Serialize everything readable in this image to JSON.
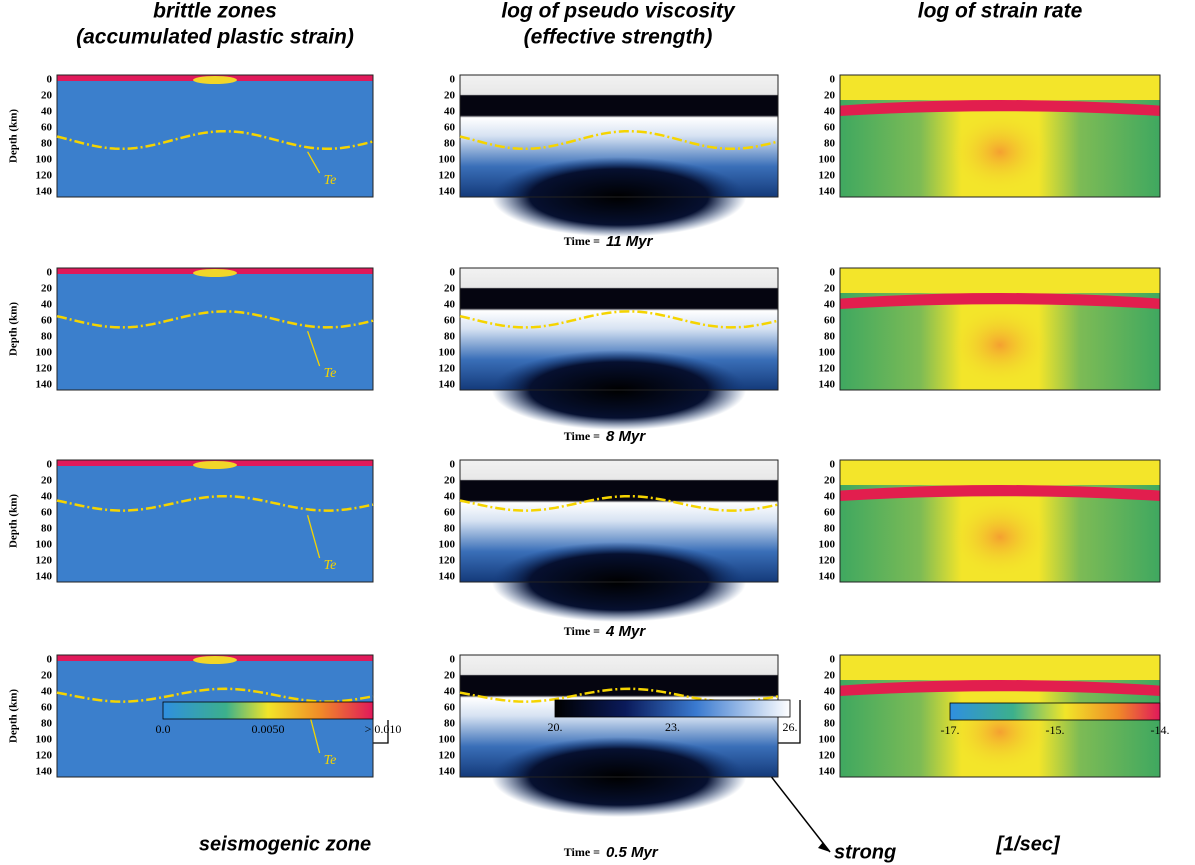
{
  "columns": [
    {
      "title": "brittle zones",
      "subtitle": "(accumulated plastic strain)"
    },
    {
      "title": "log of pseudo viscosity",
      "subtitle": "(effective strength)"
    },
    {
      "title": "log of strain rate"
    }
  ],
  "axis_label": "Depth (km)",
  "depth_ticks": [
    "0",
    "20",
    "40",
    "60",
    "80",
    "100",
    "120",
    "140"
  ],
  "time_prefix": "Time =",
  "times": [
    "11 Myr",
    "8 Myr",
    "4 Myr",
    "0.5 Myr"
  ],
  "te_label": "Te",
  "colorbars": [
    {
      "labels": [
        "0.0",
        "0.0050",
        "> 0.010"
      ],
      "caption": "seismogenic zone"
    },
    {
      "labels": [
        "20.",
        "23.",
        "26."
      ],
      "caption": "strong"
    },
    {
      "labels": [
        "-17.",
        "-15.",
        "-14."
      ],
      "caption": "[1/sec]"
    }
  ]
}
